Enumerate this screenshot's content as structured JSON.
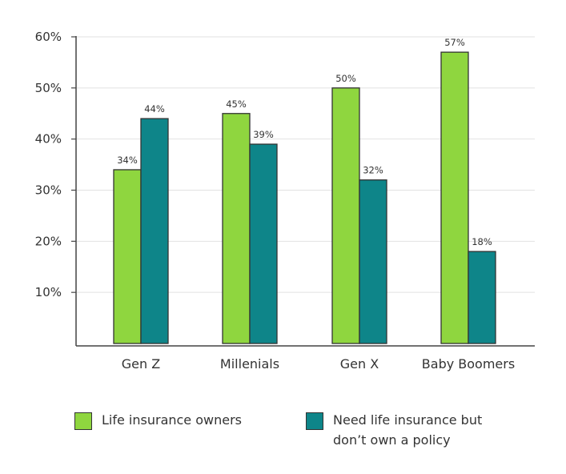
{
  "chart_data": {
    "type": "bar",
    "categories": [
      "Gen Z",
      "Millenials",
      "Gen X",
      "Baby Boomers"
    ],
    "series": [
      {
        "name": "Life insurance owners",
        "values": [
          34,
          45,
          50,
          57
        ],
        "labels": [
          "34%",
          "45%",
          "50%",
          "57%"
        ],
        "color": "#8fd63f"
      },
      {
        "name": "Need life insurance but don’t own a policy",
        "values": [
          44,
          39,
          32,
          18
        ],
        "labels": [
          "44%",
          "39%",
          "32%",
          "18%"
        ],
        "color": "#0e8589"
      }
    ],
    "y_ticks": [
      {
        "value": 10,
        "label": "10%"
      },
      {
        "value": 20,
        "label": "20%"
      },
      {
        "value": 30,
        "label": "30%"
      },
      {
        "value": 40,
        "label": "40%"
      },
      {
        "value": 50,
        "label": "50%"
      },
      {
        "value": 60,
        "label": "60%"
      }
    ],
    "ylim": [
      0,
      60
    ],
    "grid": true,
    "legend_position": "bottom"
  },
  "legend": {
    "items": [
      {
        "label_line1": "Life insurance owners",
        "label_line2": "",
        "color": "#8fd63f"
      },
      {
        "label_line1": "Need life insurance but",
        "label_line2": "don’t own a policy",
        "color": "#0e8589"
      }
    ]
  }
}
